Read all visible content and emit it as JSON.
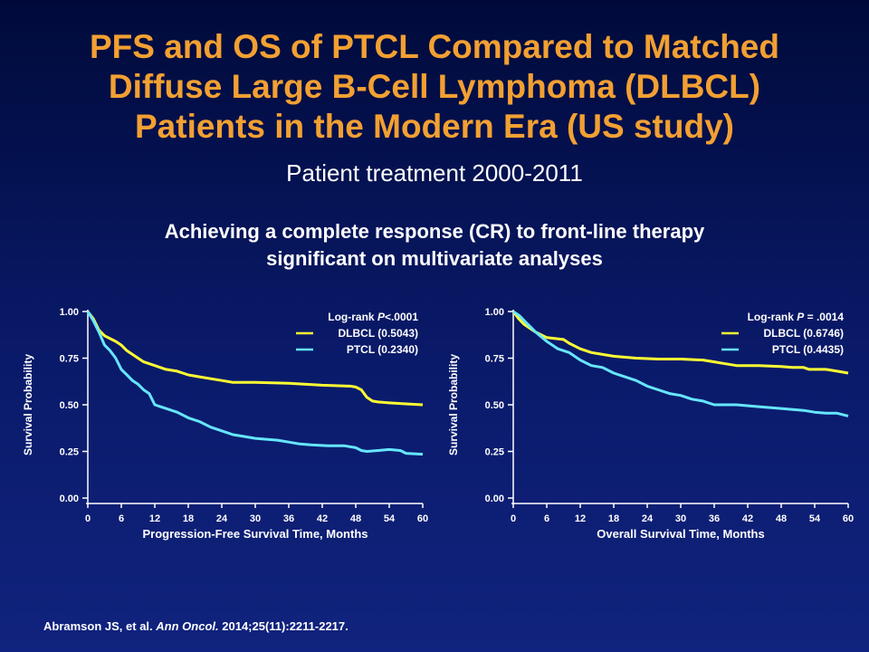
{
  "slide": {
    "title_lines": [
      "PFS and OS of PTCL Compared to Matched",
      "Diffuse Large B-Cell Lymphoma (DLBCL)",
      "Patients in the Modern Era (US study)"
    ],
    "subtitle": "Patient treatment 2000-2011",
    "note_lines": [
      "Achieving a complete response (CR) to front-line therapy",
      "significant on multivariate analyses"
    ],
    "citation": {
      "authors": "Abramson JS, et al.",
      "journal": "Ann Oncol.",
      "details": "2014;25(11):2211-2217."
    }
  },
  "colors": {
    "title": "#f2a032",
    "dlbcl": "#ffff33",
    "ptcl": "#66e6ff",
    "background": "#0a1a6a"
  },
  "chart_data": [
    {
      "type": "line",
      "ylabel": "Survival Probability",
      "xlabel": "Progression-Free Survival Time, Months",
      "xlim": [
        0,
        60
      ],
      "ylim": [
        0,
        1
      ],
      "xticks": [
        "0",
        "6",
        "12",
        "18",
        "24",
        "30",
        "36",
        "42",
        "48",
        "54",
        "60"
      ],
      "yticks": [
        "0.00",
        "0.25",
        "0.50",
        "0.75",
        "1.00"
      ],
      "legend_position": "top-right",
      "legend_title_prefix": "Log-rank ",
      "legend_title_italic": "P",
      "legend_title_suffix": "<.0001",
      "series": [
        {
          "name": "DLBCL (0.5043)",
          "color": "#ffff33",
          "points": [
            [
              0,
              1.0
            ],
            [
              1,
              0.96
            ],
            [
              2,
              0.9
            ],
            [
              3,
              0.87
            ],
            [
              5,
              0.84
            ],
            [
              6,
              0.82
            ],
            [
              7,
              0.79
            ],
            [
              9,
              0.75
            ],
            [
              10,
              0.73
            ],
            [
              12,
              0.71
            ],
            [
              14,
              0.69
            ],
            [
              16,
              0.68
            ],
            [
              18,
              0.66
            ],
            [
              20,
              0.65
            ],
            [
              22,
              0.64
            ],
            [
              24,
              0.63
            ],
            [
              26,
              0.62
            ],
            [
              30,
              0.62
            ],
            [
              36,
              0.615
            ],
            [
              42,
              0.605
            ],
            [
              47,
              0.6
            ],
            [
              48,
              0.595
            ],
            [
              49,
              0.58
            ],
            [
              50,
              0.54
            ],
            [
              51,
              0.52
            ],
            [
              52,
              0.515
            ],
            [
              54,
              0.51
            ],
            [
              57,
              0.505
            ],
            [
              60,
              0.5
            ]
          ]
        },
        {
          "name": "PTCL (0.2340)",
          "color": "#66e6ff",
          "points": [
            [
              0,
              1.0
            ],
            [
              1,
              0.95
            ],
            [
              2,
              0.89
            ],
            [
              3,
              0.82
            ],
            [
              4,
              0.79
            ],
            [
              5,
              0.75
            ],
            [
              6,
              0.69
            ],
            [
              7,
              0.66
            ],
            [
              8,
              0.63
            ],
            [
              9,
              0.61
            ],
            [
              10,
              0.58
            ],
            [
              11,
              0.56
            ],
            [
              12,
              0.5
            ],
            [
              13,
              0.49
            ],
            [
              14,
              0.48
            ],
            [
              16,
              0.46
            ],
            [
              18,
              0.43
            ],
            [
              20,
              0.41
            ],
            [
              22,
              0.38
            ],
            [
              24,
              0.36
            ],
            [
              26,
              0.34
            ],
            [
              28,
              0.33
            ],
            [
              30,
              0.32
            ],
            [
              34,
              0.31
            ],
            [
              36,
              0.3
            ],
            [
              38,
              0.29
            ],
            [
              40,
              0.285
            ],
            [
              43,
              0.28
            ],
            [
              46,
              0.28
            ],
            [
              48,
              0.27
            ],
            [
              49,
              0.255
            ],
            [
              50,
              0.25
            ],
            [
              52,
              0.255
            ],
            [
              54,
              0.26
            ],
            [
              56,
              0.255
            ],
            [
              57,
              0.24
            ],
            [
              60,
              0.235
            ]
          ]
        }
      ]
    },
    {
      "type": "line",
      "ylabel": "Survival Probability",
      "xlabel": "Overall  Survival Time, Months",
      "xlim": [
        0,
        60
      ],
      "ylim": [
        0,
        1
      ],
      "xticks": [
        "0",
        "6",
        "12",
        "18",
        "24",
        "30",
        "36",
        "42",
        "48",
        "54",
        "60"
      ],
      "yticks": [
        "0.00",
        "0.25",
        "0.50",
        "0.75",
        "1.00"
      ],
      "legend_position": "top-right",
      "legend_title_prefix": "Log-rank ",
      "legend_title_italic": "P",
      "legend_title_suffix": " = .0014",
      "series": [
        {
          "name": "DLBCL (0.6746)",
          "color": "#ffff33",
          "points": [
            [
              0,
              1.0
            ],
            [
              1,
              0.96
            ],
            [
              2,
              0.93
            ],
            [
              4,
              0.89
            ],
            [
              6,
              0.86
            ],
            [
              9,
              0.85
            ],
            [
              10,
              0.83
            ],
            [
              12,
              0.8
            ],
            [
              14,
              0.78
            ],
            [
              16,
              0.77
            ],
            [
              18,
              0.76
            ],
            [
              22,
              0.75
            ],
            [
              26,
              0.745
            ],
            [
              30,
              0.745
            ],
            [
              34,
              0.74
            ],
            [
              36,
              0.73
            ],
            [
              38,
              0.72
            ],
            [
              40,
              0.71
            ],
            [
              44,
              0.71
            ],
            [
              48,
              0.705
            ],
            [
              50,
              0.7
            ],
            [
              52,
              0.7
            ],
            [
              53,
              0.69
            ],
            [
              56,
              0.69
            ],
            [
              58,
              0.68
            ],
            [
              60,
              0.67
            ]
          ]
        },
        {
          "name": "PTCL (0.4435)",
          "color": "#66e6ff",
          "points": [
            [
              0,
              1.0
            ],
            [
              1,
              0.98
            ],
            [
              2,
              0.95
            ],
            [
              4,
              0.89
            ],
            [
              6,
              0.84
            ],
            [
              8,
              0.8
            ],
            [
              10,
              0.78
            ],
            [
              12,
              0.74
            ],
            [
              14,
              0.71
            ],
            [
              16,
              0.7
            ],
            [
              18,
              0.67
            ],
            [
              20,
              0.65
            ],
            [
              22,
              0.63
            ],
            [
              24,
              0.6
            ],
            [
              26,
              0.58
            ],
            [
              28,
              0.56
            ],
            [
              30,
              0.55
            ],
            [
              32,
              0.53
            ],
            [
              34,
              0.52
            ],
            [
              36,
              0.5
            ],
            [
              40,
              0.5
            ],
            [
              44,
              0.49
            ],
            [
              48,
              0.48
            ],
            [
              52,
              0.47
            ],
            [
              54,
              0.46
            ],
            [
              56,
              0.455
            ],
            [
              58,
              0.455
            ],
            [
              60,
              0.44
            ]
          ]
        }
      ]
    }
  ]
}
